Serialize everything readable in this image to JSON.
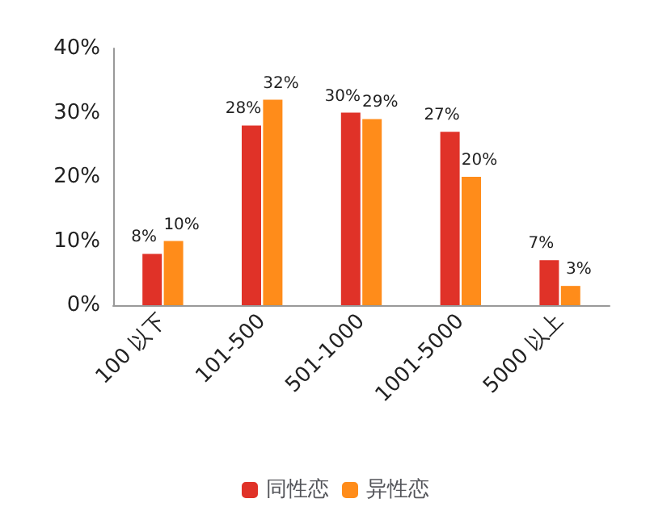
{
  "chart_data": {
    "type": "bar",
    "categories": [
      "100 以下",
      "101-500",
      "501-1000",
      "1001-5000",
      "5000 以上"
    ],
    "series": [
      {
        "name": "同性恋",
        "color": "#e03228",
        "values": [
          8,
          28,
          30,
          27,
          7
        ],
        "value_labels": [
          "8%",
          "28%",
          "30%",
          "27%",
          "7%"
        ]
      },
      {
        "name": "异性恋",
        "color": "#ff8c1a",
        "values": [
          10,
          32,
          29,
          20,
          3
        ],
        "value_labels": [
          "10%",
          "32%",
          "29%",
          "20%",
          "3%"
        ]
      }
    ],
    "ylim": [
      0,
      40
    ],
    "yticks": [
      {
        "value": 0,
        "label": "0%"
      },
      {
        "value": 10,
        "label": "10%"
      },
      {
        "value": 20,
        "label": "20%"
      },
      {
        "value": 30,
        "label": "30%"
      },
      {
        "value": 40,
        "label": "40%"
      }
    ],
    "grid": false,
    "legend": "bottom"
  }
}
